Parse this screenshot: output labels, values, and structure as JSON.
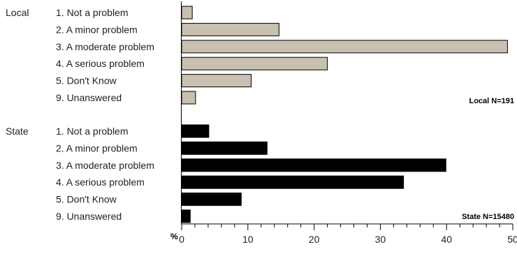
{
  "chart_data": {
    "type": "bar",
    "orientation": "horizontal",
    "axis_unit_label": "%",
    "xlim": [
      0,
      50
    ],
    "xticks": [
      "0",
      "10",
      "20",
      "30",
      "40",
      "50"
    ],
    "categories": [
      "1. Not a problem",
      "2. A minor problem",
      "3. A moderate problem",
      "4. A serious problem",
      "5. Don't Know",
      "9. Unanswered"
    ],
    "series": [
      {
        "name": "Local",
        "n_label": "Local N=191",
        "color": "#c8c0b0",
        "values": [
          1.6,
          14.7,
          49.2,
          22.0,
          10.5,
          2.1
        ]
      },
      {
        "name": "State",
        "n_label": "State N=15480",
        "color": "#000000",
        "values": [
          4.1,
          12.9,
          39.9,
          33.5,
          9.0,
          1.3
        ]
      }
    ]
  }
}
